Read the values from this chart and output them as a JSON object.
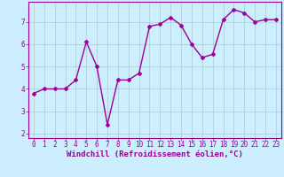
{
  "x": [
    0,
    1,
    2,
    3,
    4,
    5,
    6,
    7,
    8,
    9,
    10,
    11,
    12,
    13,
    14,
    15,
    16,
    17,
    18,
    19,
    20,
    21,
    22,
    23
  ],
  "y": [
    3.8,
    4.0,
    4.0,
    4.0,
    4.4,
    6.1,
    5.0,
    2.4,
    4.4,
    4.4,
    4.7,
    6.8,
    6.9,
    7.2,
    6.85,
    6.0,
    5.4,
    5.55,
    7.1,
    7.55,
    7.4,
    7.0,
    7.1,
    7.1
  ],
  "line_color": "#990099",
  "marker": "D",
  "markersize": 2.0,
  "linewidth": 1.0,
  "background_color": "#cceeff",
  "grid_color": "#aacccc",
  "xlabel": "Windchill (Refroidissement éolien,°C)",
  "xlabel_fontsize": 6.5,
  "ylabel_ticks": [
    2,
    3,
    4,
    5,
    6,
    7
  ],
  "xtick_labels": [
    "0",
    "1",
    "2",
    "3",
    "4",
    "5",
    "6",
    "7",
    "8",
    "9",
    "10",
    "11",
    "12",
    "13",
    "14",
    "15",
    "16",
    "17",
    "18",
    "19",
    "20",
    "21",
    "22",
    "23"
  ],
  "xlim": [
    -0.5,
    23.5
  ],
  "ylim": [
    1.8,
    7.9
  ],
  "tick_fontsize": 5.5
}
